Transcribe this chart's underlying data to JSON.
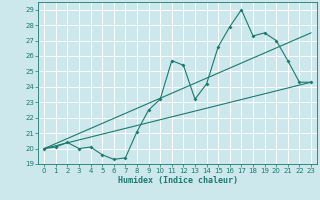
{
  "xlabel": "Humidex (Indice chaleur)",
  "bg_color": "#cce8ec",
  "grid_color": "#ffffff",
  "line_color": "#1a7a6e",
  "xlim": [
    -0.5,
    23.5
  ],
  "ylim": [
    19,
    29.5
  ],
  "xticks": [
    0,
    1,
    2,
    3,
    4,
    5,
    6,
    7,
    8,
    9,
    10,
    11,
    12,
    13,
    14,
    15,
    16,
    17,
    18,
    19,
    20,
    21,
    22,
    23
  ],
  "yticks": [
    19,
    20,
    21,
    22,
    23,
    24,
    25,
    26,
    27,
    28,
    29
  ],
  "series1_x": [
    0,
    1,
    2,
    3,
    4,
    5,
    6,
    7,
    8,
    9,
    10,
    11,
    12,
    13,
    14,
    15,
    16,
    17,
    18,
    19,
    20,
    21,
    22,
    23
  ],
  "series1_y": [
    20.0,
    20.1,
    20.4,
    20.0,
    20.1,
    19.6,
    19.3,
    19.4,
    21.1,
    22.5,
    23.2,
    25.7,
    25.4,
    23.2,
    24.2,
    26.6,
    27.9,
    29.0,
    27.3,
    27.5,
    27.0,
    25.7,
    24.3,
    24.3
  ],
  "series2_x": [
    0,
    23
  ],
  "series2_y": [
    20.0,
    24.3
  ],
  "series3_x": [
    0,
    23
  ],
  "series3_y": [
    20.0,
    27.5
  ]
}
